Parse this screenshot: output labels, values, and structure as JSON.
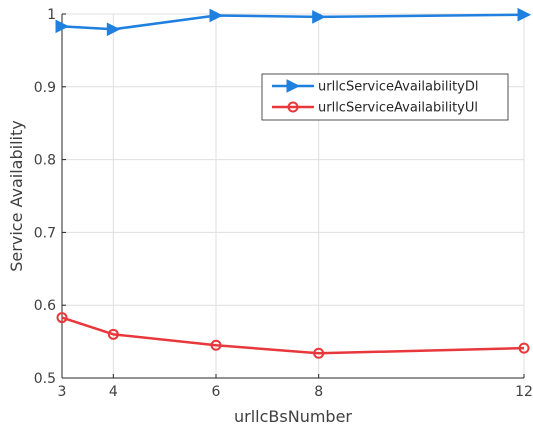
{
  "chart_data": {
    "type": "line",
    "xlabel": "urllcBsNumber",
    "ylabel": "Service Availability",
    "x": [
      3,
      4,
      6,
      8,
      12
    ],
    "x_tick_labels": [
      "3",
      "4",
      "6",
      "8",
      "12"
    ],
    "xlim": [
      3,
      12
    ],
    "ylim": [
      0.5,
      1.0
    ],
    "y_ticks": [
      0.5,
      0.6,
      0.7,
      0.8,
      0.9,
      1.0
    ],
    "y_tick_labels": [
      "0.5",
      "0.6",
      "0.7",
      "0.8",
      "0.9",
      "1"
    ],
    "grid": true,
    "legend_position": "upper-right",
    "series": [
      {
        "name": "urllcServiceAvailabilityDl",
        "values": [
          0.983,
          0.979,
          0.998,
          0.996,
          0.999
        ],
        "color": "#1f80e0",
        "marker": "triangle-right"
      },
      {
        "name": "urllcServiceAvailabilityUl",
        "values": [
          0.583,
          0.56,
          0.545,
          0.534,
          0.541
        ],
        "color": "#e8383b",
        "marker": "circle"
      }
    ]
  }
}
